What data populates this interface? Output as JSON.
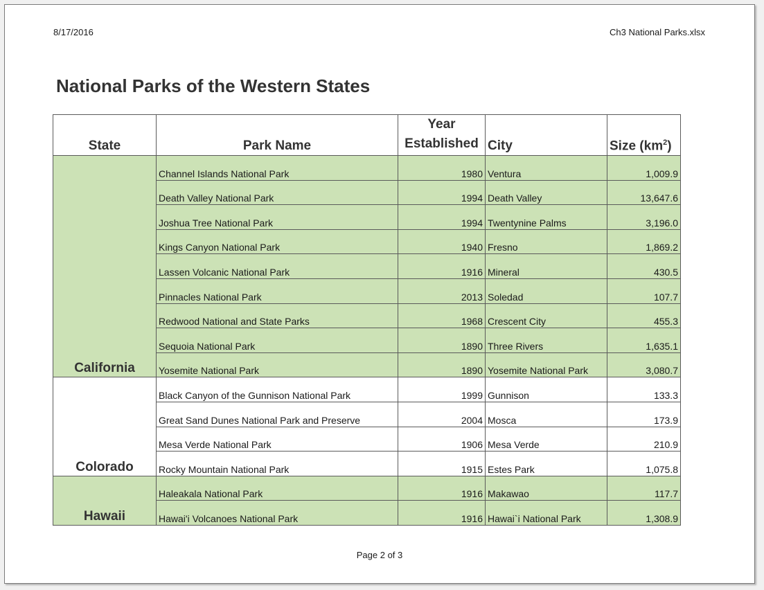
{
  "header": {
    "date": "8/17/2016",
    "filename": "Ch3 National Parks.xlsx"
  },
  "title": "National Parks of the Western States",
  "columns": {
    "state": "State",
    "park": "Park Name",
    "year_line1": "Year",
    "year_line2": "Established",
    "city": "City",
    "size": "Size (km",
    "size_sup": "2",
    "size_close": ")"
  },
  "groups": [
    {
      "state": "California",
      "shade": "green",
      "rows": [
        {
          "park": "Channel Islands National Park",
          "year": "1980",
          "city": "Ventura",
          "size": "1,009.9"
        },
        {
          "park": "Death Valley National Park",
          "year": "1994",
          "city": "Death Valley",
          "size": "13,647.6"
        },
        {
          "park": "Joshua Tree National Park",
          "year": "1994",
          "city": "Twentynine Palms",
          "size": "3,196.0"
        },
        {
          "park": "Kings Canyon National Park",
          "year": "1940",
          "city": "Fresno",
          "size": "1,869.2"
        },
        {
          "park": "Lassen Volcanic National Park",
          "year": "1916",
          "city": "Mineral",
          "size": "430.5"
        },
        {
          "park": "Pinnacles National Park",
          "year": "2013",
          "city": "Soledad",
          "size": "107.7"
        },
        {
          "park": "Redwood National and State Parks",
          "year": "1968",
          "city": "Crescent City",
          "size": "455.3"
        },
        {
          "park": "Sequoia National Park",
          "year": "1890",
          "city": "Three Rivers",
          "size": "1,635.1"
        },
        {
          "park": "Yosemite National Park",
          "year": "1890",
          "city": "Yosemite National Park",
          "size": "3,080.7"
        }
      ]
    },
    {
      "state": "Colorado",
      "shade": "white",
      "rows": [
        {
          "park": "Black Canyon of the Gunnison National Park",
          "year": "1999",
          "city": "Gunnison",
          "size": "133.3"
        },
        {
          "park": "Great Sand Dunes National Park and Preserve",
          "year": "2004",
          "city": "Mosca",
          "size": "173.9"
        },
        {
          "park": "Mesa Verde National Park",
          "year": "1906",
          "city": "Mesa Verde",
          "size": "210.9"
        },
        {
          "park": "Rocky Mountain National Park",
          "year": "1915",
          "city": "Estes Park",
          "size": "1,075.8"
        }
      ]
    },
    {
      "state": "Hawaii",
      "shade": "green",
      "rows": [
        {
          "park": "Haleakala National Park",
          "year": "1916",
          "city": "Makawao",
          "size": "117.7"
        },
        {
          "park": "Hawai'i Volcanoes National Park",
          "year": "1916",
          "city": "Hawai`i National Park",
          "size": "1,308.9"
        }
      ]
    }
  ],
  "footer": {
    "page": "Page 2 of 3"
  }
}
